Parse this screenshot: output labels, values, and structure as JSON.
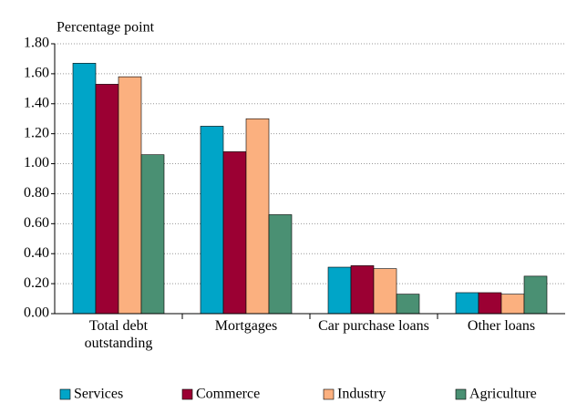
{
  "chart_data": {
    "type": "bar",
    "y_axis_label": "Percentage point",
    "categories": [
      "Total debt outstanding",
      "Mortgages",
      "Car purchase loans",
      "Other loans"
    ],
    "series": [
      {
        "name": "Services",
        "color": "#00a5c8",
        "values": [
          1.67,
          1.25,
          0.31,
          0.14
        ]
      },
      {
        "name": "Commerce",
        "color": "#9b0033",
        "values": [
          1.53,
          1.08,
          0.32,
          0.14
        ]
      },
      {
        "name": "Industry",
        "color": "#fbb07f",
        "values": [
          1.58,
          1.3,
          0.3,
          0.13
        ]
      },
      {
        "name": "Agriculture",
        "color": "#4a9073",
        "values": [
          1.06,
          0.66,
          0.13,
          0.25
        ]
      }
    ],
    "ylim": [
      0,
      1.8
    ],
    "yticks": [
      {
        "value": 0,
        "label": "0.00"
      },
      {
        "value": 0.2,
        "label": "0.20"
      },
      {
        "value": 0.4,
        "label": "0.40"
      },
      {
        "value": 0.6,
        "label": "0.60"
      },
      {
        "value": 0.8,
        "label": "0.80"
      },
      {
        "value": 1.0,
        "label": "1.00"
      },
      {
        "value": 1.2,
        "label": "1.20"
      },
      {
        "value": 1.4,
        "label": "1.40"
      },
      {
        "value": 1.6,
        "label": "1.60"
      },
      {
        "value": 1.8,
        "label": "1.80"
      }
    ],
    "grid": true,
    "legend": "bottom"
  }
}
